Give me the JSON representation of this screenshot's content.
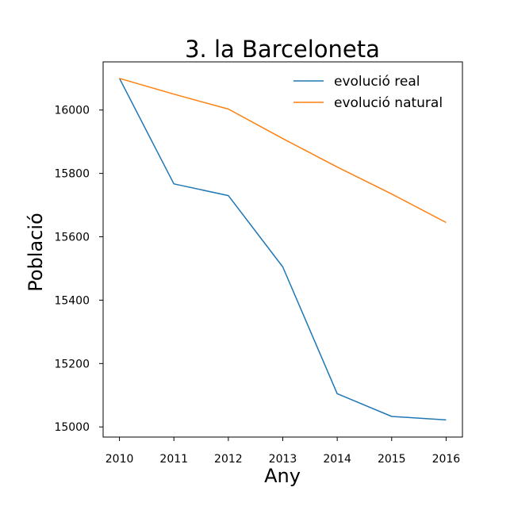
{
  "chart_data": {
    "type": "line",
    "title": "3. la Barceloneta",
    "xlabel": "Any",
    "ylabel": "Població",
    "x": [
      2010,
      2011,
      2012,
      2013,
      2014,
      2015,
      2016
    ],
    "x_ticks": [
      "2010",
      "2011",
      "2012",
      "2013",
      "2014",
      "2015",
      "2016"
    ],
    "y_ticks": [
      "15000",
      "15200",
      "15400",
      "15600",
      "15800",
      "16000"
    ],
    "xlim": [
      2009.7,
      2016.3
    ],
    "ylim": [
      14968,
      16152
    ],
    "grid": false,
    "legend_position": "top-right",
    "series": [
      {
        "name": "evolució real",
        "color": "#1f77b4",
        "values": [
          16100,
          15767,
          15730,
          15505,
          15105,
          15033,
          15022
        ]
      },
      {
        "name": "evolució natural",
        "color": "#ff7f0e",
        "values": [
          16100,
          16050,
          16003,
          15910,
          15820,
          15735,
          15645
        ]
      }
    ]
  }
}
